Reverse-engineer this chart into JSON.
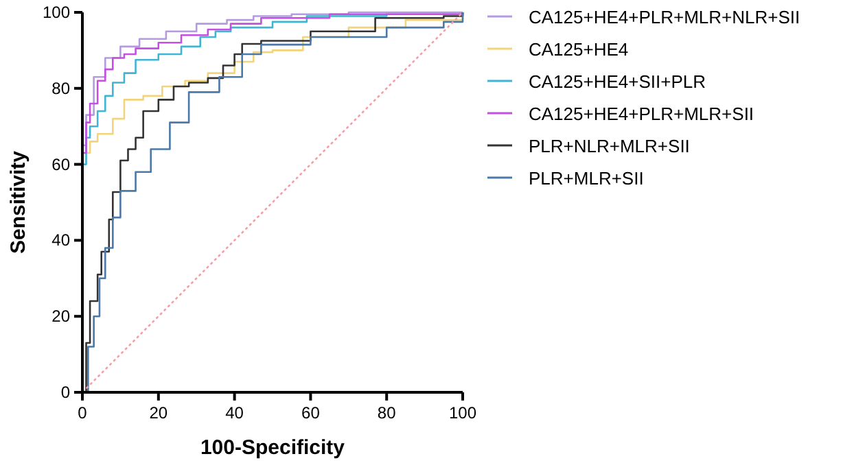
{
  "chart_data": {
    "type": "step",
    "xlabel": "100-Specificity",
    "ylabel": "Sensitivity",
    "xlim": [
      0,
      100
    ],
    "ylim": [
      0,
      100
    ],
    "xticks": [
      0,
      20,
      40,
      60,
      80,
      100
    ],
    "yticks": [
      0,
      20,
      40,
      60,
      80,
      100
    ],
    "grid": false,
    "legend": "right",
    "marker": "none",
    "series": [
      {
        "name": "CA125+HE4+PLR+MLR+NLR+SII",
        "color": "#b49ae0",
        "x": [
          0,
          0,
          1,
          3,
          6,
          10,
          15,
          22,
          30,
          38,
          45,
          55,
          70,
          100
        ],
        "values": [
          0,
          65,
          73,
          83,
          88,
          91,
          93,
          95,
          97,
          98,
          99,
          99.5,
          100,
          100
        ]
      },
      {
        "name": "CA125+HE4",
        "color": "#f2d57a",
        "x": [
          0,
          0,
          2,
          4,
          8,
          11,
          16,
          21,
          27,
          33,
          40,
          45,
          50,
          58,
          70,
          85,
          100
        ],
        "values": [
          0,
          63,
          66,
          68,
          72,
          77,
          78,
          80.5,
          82,
          84,
          87,
          89.5,
          90,
          93.5,
          96,
          98,
          100
        ]
      },
      {
        "name": "CA125+HE4+SII+PLR",
        "color": "#3fb4d4",
        "x": [
          0,
          0,
          1,
          2,
          4,
          6,
          8,
          11,
          14,
          20,
          26,
          31,
          35,
          39,
          50,
          59,
          80,
          100
        ],
        "values": [
          0,
          60,
          67,
          70,
          74,
          78,
          81.5,
          84,
          87.5,
          89,
          91,
          93.5,
          95,
          96,
          97.5,
          99,
          99.5,
          100
        ]
      },
      {
        "name": "CA125+HE4+PLR+MLR+SII",
        "color": "#c44fe0",
        "x": [
          0,
          0,
          1,
          2,
          4,
          6,
          8,
          11,
          14,
          20,
          26,
          33,
          39,
          47,
          65,
          100
        ],
        "values": [
          0,
          63,
          71,
          76,
          82,
          85,
          88,
          89,
          90.5,
          92,
          94,
          95.5,
          97,
          98.5,
          99.5,
          100
        ]
      },
      {
        "name": "PLR+NLR+MLR+SII",
        "color": "#333333",
        "x": [
          0,
          1,
          1,
          2,
          4,
          5,
          7,
          8,
          10,
          12,
          14,
          16,
          20,
          24,
          28,
          33,
          37,
          40,
          42,
          47,
          60,
          77,
          95,
          100
        ],
        "values": [
          0,
          0,
          13,
          24,
          31,
          37,
          45.5,
          52.7,
          61,
          64,
          67,
          74,
          77,
          80.5,
          81.5,
          82.7,
          86,
          89,
          91.7,
          92.5,
          95,
          98.5,
          99,
          100
        ]
      },
      {
        "name": "PLR+MLR+SII",
        "color": "#4a78a8",
        "x": [
          0,
          1.5,
          1.5,
          3,
          4.5,
          6,
          8,
          10,
          14,
          18,
          23,
          28,
          36,
          42,
          47,
          60,
          80,
          95,
          100
        ],
        "values": [
          0,
          0,
          12,
          20,
          30,
          38,
          46,
          53,
          58,
          64,
          71,
          79,
          83,
          89,
          91.5,
          93.5,
          96,
          97.5,
          100
        ]
      },
      {
        "type": "line",
        "line_style": "dotted",
        "color": "#f0a0a8",
        "x": [
          0,
          100
        ],
        "values": [
          0,
          100
        ]
      }
    ]
  }
}
